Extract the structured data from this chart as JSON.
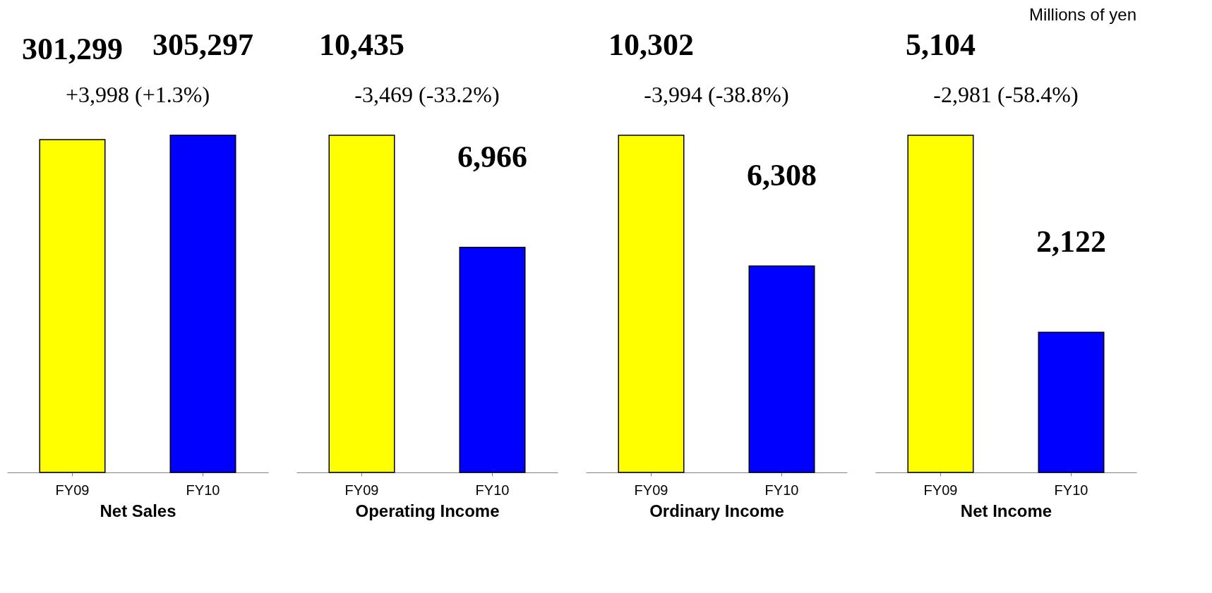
{
  "chart_data": [
    {
      "type": "bar",
      "categories": [
        "FY09",
        "FY10"
      ],
      "values": [
        301299,
        305297
      ],
      "value_labels": [
        "301,299",
        "305,297"
      ],
      "colors": [
        "#ffff00",
        "#0000ff"
      ],
      "xlabel": "Net Sales",
      "annotations": [
        "+3,998  (+1.3%)"
      ]
    },
    {
      "type": "bar",
      "categories": [
        "FY09",
        "FY10"
      ],
      "values": [
        10435,
        6966
      ],
      "value_labels": [
        "10,435",
        "6,966"
      ],
      "colors": [
        "#ffff00",
        "#0000ff"
      ],
      "xlabel": "Operating Income",
      "annotations": [
        "-3,469  (-33.2%)"
      ]
    },
    {
      "type": "bar",
      "categories": [
        "FY09",
        "FY10"
      ],
      "values": [
        10302,
        6308
      ],
      "value_labels": [
        "10,302",
        "6,308"
      ],
      "colors": [
        "#ffff00",
        "#0000ff"
      ],
      "xlabel": "Ordinary Income",
      "annotations": [
        "-3,994  (-38.8%)"
      ]
    },
    {
      "type": "bar",
      "categories": [
        "FY09",
        "FY10"
      ],
      "values": [
        5104,
        2122
      ],
      "value_labels": [
        "5,104",
        "2,122"
      ],
      "colors": [
        "#ffff00",
        "#0000ff"
      ],
      "xlabel": "Net Income",
      "annotations": [
        "-2,981  (-58.4%)",
        "Millions of yen"
      ]
    }
  ]
}
